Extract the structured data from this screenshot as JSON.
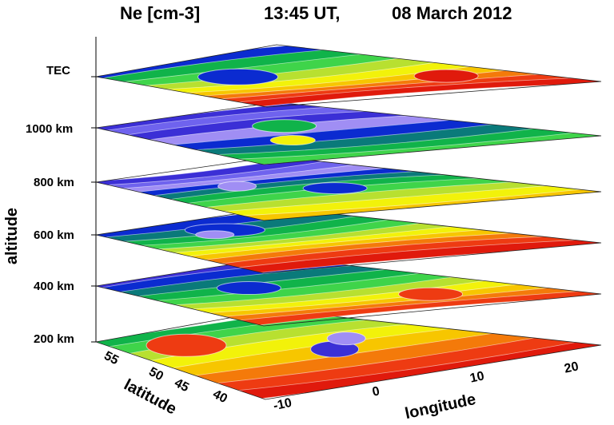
{
  "title": {
    "quantity": "Ne [cm-3]",
    "time": "13:45 UT,",
    "date": "08 March 2012"
  },
  "chart_data": {
    "type": "heatmap",
    "title": "Ne [cm-3]     13:45 UT,    08 March 2012",
    "zlabel": "altitude",
    "xlabel": "longitude",
    "ylabel": "latitude",
    "layers": [
      "200 km",
      "400 km",
      "600 km",
      "800 km",
      "1000 km",
      "TEC"
    ],
    "longitude_ticks": [
      "-10",
      "0",
      "10",
      "20"
    ],
    "latitude_ticks": [
      "40",
      "45",
      "50",
      "55"
    ],
    "xlim": [
      -12,
      25
    ],
    "ylim": [
      36,
      58
    ],
    "colormap": [
      "#3b2fd6",
      "#6f63ee",
      "#a08ef4",
      "#0b2bd0",
      "#0a7a7a",
      "#10b34a",
      "#3fd44a",
      "#b8e030",
      "#f2f20a",
      "#f7c600",
      "#f47a0a",
      "#ee3b12",
      "#e01a0c"
    ],
    "contours": true
  },
  "axes": {
    "z_title": "altitude",
    "x_title": "longitude",
    "y_title": "latitude"
  }
}
